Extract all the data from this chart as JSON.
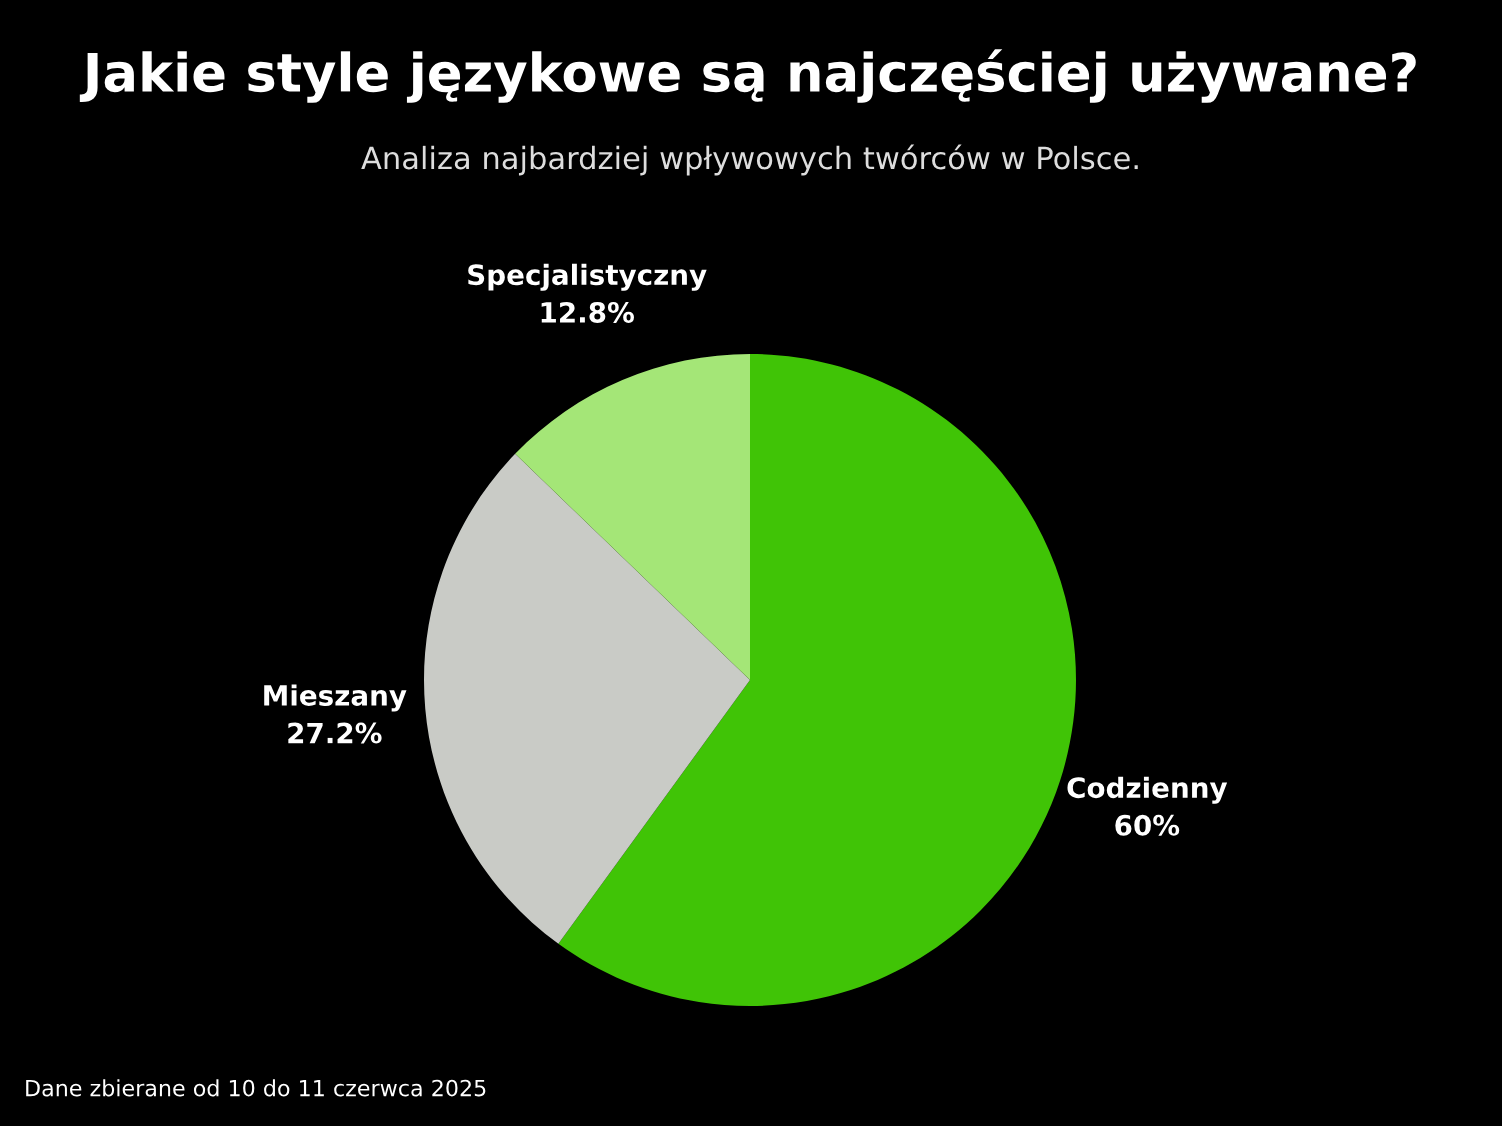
{
  "chart_data": {
    "type": "pie",
    "title": "Jakie style językowe są najczęściej używane?",
    "subtitle": "Analiza najbardziej wpływowych twórców w Polsce.",
    "categories": [
      "Codzienny",
      "Mieszany",
      "Specjalistyczny"
    ],
    "values": [
      60,
      27.2,
      12.8
    ],
    "value_labels": [
      "60%",
      "27.2%",
      "12.8%"
    ],
    "colors": [
      "#40c406",
      "#c9cbc6",
      "#a4e677"
    ],
    "annotations": [
      "Dane zbierane od 10 do 11 czerwca 2025"
    ]
  }
}
